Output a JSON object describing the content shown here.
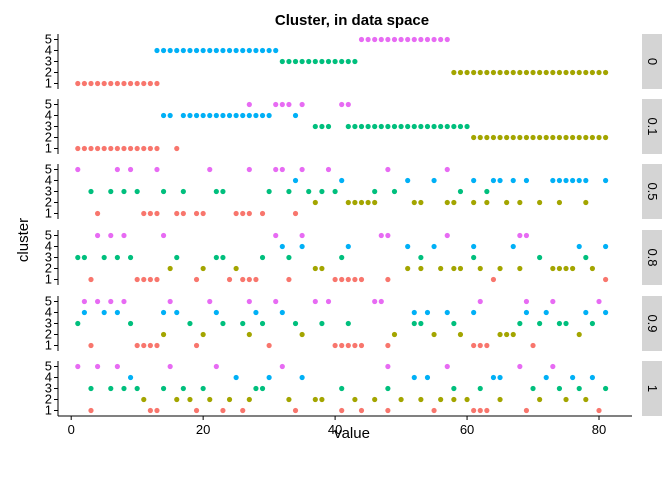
{
  "chart_data": {
    "type": "scatter",
    "title": "Cluster, in data space",
    "xlabel": "value",
    "ylabel": "cluster",
    "xlim": [
      -2,
      85
    ],
    "ylim": [
      0.5,
      5.5
    ],
    "xticks": [
      0,
      20,
      40,
      60,
      80
    ],
    "yticks": [
      1,
      2,
      3,
      4,
      5
    ],
    "grid": false,
    "legend": "none",
    "cluster_colors": {
      "1": "#F8766D",
      "2": "#A3A500",
      "3": "#00BF7D",
      "4": "#00B0F6",
      "5": "#E76BF3"
    },
    "facets": [
      {
        "label": "0",
        "assignments": "1:1-13|4:13-31|3:32-43|5:44-57|2:58-81"
      },
      {
        "label": "0.1",
        "assignments": "1:1-13|4:14-15|5:27|4:17-27|4:28-30|5:31-33|4:34|5:35|3:37-39|5:41-42|3:42-60|1:16|2:61-81"
      },
      {
        "label": "0.5",
        "assignments": "5:1|3:3|1:4|3:6|5:7|3:8|5:9|3:10|1:11-13|5:13|3:14|1:16-17|3:17|1:19-20|5:21|3:22-23|1:25-27|5:27|1:29|3:30|5:31-32|3:33|4:34|1:34|5:35|3:36|2:37|3:38|5:39|3:40|4:41|2:42-46|3:46|5:48|3:49|4:51|2:52-53|4:55|2:57|5:57|2:58|3:59|2:61|4:61|3:63|2:63|4:64-65|2:66|4:67|2:68|4:69|2:71|4:73-78|2:74|2:78|4:81"
      },
      {
        "label": "0.8",
        "assignments": "3:1-2|5:4|1:3|3:5|5:6|3:7|5:8|3:9|1:10-13|2:15|5:14|3:16|1:19|2:20|3:22-23|1:24|2:25|1:26-28|3:29|4:32|5:31|3:33|1:33|5:35|4:35|2:37-38|1:40-44|3:41|4:42|5:47-48|1:48|2:51|4:51|2:53|3:53|4:55|2:56|5:57|2:58-59|4:61|3:61|2:62|1:64|2:65|4:67|5:68|2:68|5:69|3:71|2:73-76|4:77|3:78|2:79|4:81|1:81"
      },
      {
        "label": "0.9",
        "assignments": "3:1|5:2|4:2|1:3|5:4|4:5|5:6|4:7|5:8|3:9|1:10-13|2:14|4:14|5:15|4:16|3:18|1:19|2:20|5:21|4:22|3:23|3:26|5:27|2:27|4:28|3:29|1:30|5:31|4:32|3:34|2:35|5:37|3:38|5:39|1:40-44|3:42|5:46-47|1:48|2:49|3:52|4:52|3:53|4:54|2:55|4:57|3:58|2:59|4:61|1:61-63|5:62|2:65-67|3:68|4:69|5:69|1:70|3:71|4:72|5:73|3:74-75|2:77|4:78|3:79|5:80|4:81"
      },
      {
        "label": "1",
        "assignments": "5:1|3:3|1:3|5:4|3:6|5:7|3:8|4:9|3:10|2:11|1:12-13|3:14|5:15|2:16|3:17|2:18|1:19|3:20|2:21|5:22|1:23|2:24|4:25|1:26|2:27|3:28-29|4:30|5:32|2:33|1:34|4:35|2:37-38|3:41|1:41|2:43|1:44|2:46|5:48|1:48|3:48|2:50|4:52|2:53|4:54|1:55|2:56|5:57|2:58|3:58|2:60|1:61-63|3:62|4:64-65|2:65|5:68|1:69|3:70|2:71|4:72|5:73|3:74|2:75|4:76|3:77|2:78|4:79|1:80|3:81"
      }
    ]
  }
}
